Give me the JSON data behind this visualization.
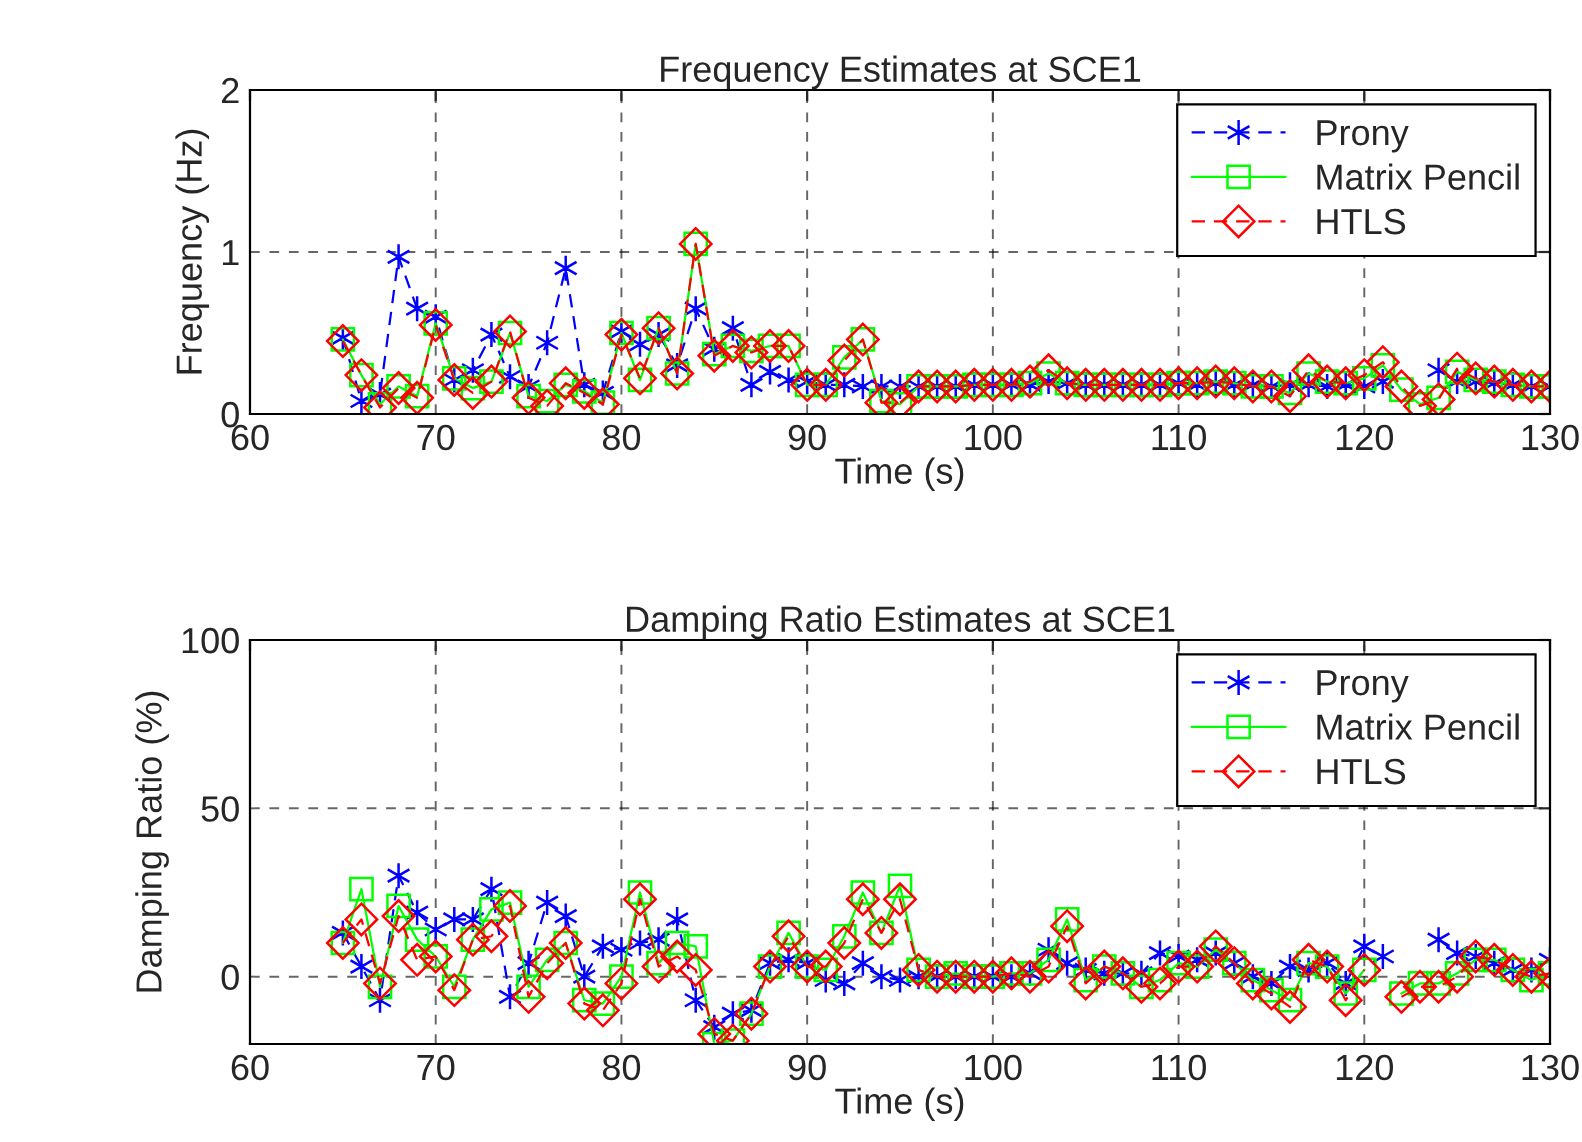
{
  "chart_data": [
    {
      "type": "line",
      "title": "Frequency Estimates at SCE1",
      "xlabel": "Time (s)",
      "ylabel": "Frequency (Hz)",
      "xlim": [
        60,
        130
      ],
      "xticks": [
        60,
        70,
        80,
        90,
        100,
        110,
        120,
        130
      ],
      "ylim": [
        0,
        2
      ],
      "yticks": [
        0,
        1,
        2
      ],
      "grid": true,
      "legend": "top right",
      "x": [
        65,
        66,
        67,
        68,
        69,
        70,
        71,
        72,
        73,
        74,
        75,
        76,
        77,
        78,
        79,
        80,
        81,
        82,
        83,
        84,
        85,
        86,
        87,
        88,
        89,
        90,
        91,
        92,
        93,
        94,
        95,
        96,
        97,
        98,
        99,
        100,
        101,
        102,
        103,
        104,
        105,
        106,
        107,
        108,
        109,
        110,
        111,
        112,
        113,
        114,
        115,
        116,
        117,
        118,
        119,
        120,
        121,
        122,
        123,
        124,
        125,
        126,
        127,
        128,
        129,
        130
      ],
      "series": [
        {
          "name": "Prony",
          "color": "#0000ff",
          "marker": "cross",
          "line_style": "dashed",
          "values": [
            0.47,
            0.08,
            0.12,
            0.97,
            0.65,
            0.6,
            0.21,
            0.27,
            0.49,
            0.23,
            0.17,
            0.44,
            0.9,
            0.18,
            0.13,
            0.51,
            0.43,
            0.49,
            0.3,
            0.65,
            0.4,
            0.53,
            0.18,
            0.26,
            0.21,
            0.2,
            0.18,
            0.18,
            0.17,
            0.17,
            0.17,
            0.17,
            0.17,
            0.17,
            0.18,
            0.18,
            0.18,
            0.18,
            0.2,
            0.19,
            0.18,
            0.18,
            0.18,
            0.18,
            0.18,
            0.19,
            0.18,
            0.19,
            0.18,
            0.18,
            0.17,
            0.18,
            0.18,
            0.17,
            0.18,
            0.17,
            0.2,
            null,
            null,
            0.27,
            0.2,
            0.2,
            0.19,
            0.18,
            0.17,
            0.17
          ]
        },
        {
          "name": "Matrix Pencil",
          "color": "#00ff00",
          "marker": "square",
          "line_style": "solid",
          "values": [
            0.46,
            0.24,
            0.06,
            0.17,
            0.11,
            0.56,
            0.22,
            0.16,
            0.2,
            0.5,
            0.11,
            0.08,
            0.18,
            0.14,
            0.07,
            0.5,
            0.21,
            0.53,
            0.25,
            1.05,
            0.37,
            0.42,
            0.39,
            0.42,
            0.42,
            0.18,
            0.18,
            0.35,
            0.46,
            0.08,
            0.06,
            0.17,
            0.17,
            0.17,
            0.18,
            0.18,
            0.18,
            0.19,
            0.25,
            0.19,
            0.18,
            0.18,
            0.18,
            0.18,
            0.18,
            0.19,
            0.19,
            0.2,
            0.19,
            0.17,
            0.17,
            0.13,
            0.25,
            0.2,
            0.19,
            0.22,
            0.3,
            0.15,
            0.06,
            0.1,
            0.26,
            0.21,
            0.2,
            0.18,
            0.17,
            0.17
          ]
        },
        {
          "name": "HTLS",
          "color": "#ff0000",
          "marker": "diamond",
          "line_style": "dashed",
          "values": [
            0.45,
            0.24,
            0.04,
            0.16,
            0.1,
            0.55,
            0.21,
            0.13,
            0.2,
            0.51,
            0.1,
            0.05,
            0.19,
            0.13,
            0.06,
            0.49,
            0.22,
            0.53,
            0.25,
            1.05,
            0.36,
            0.42,
            0.38,
            0.42,
            0.42,
            0.18,
            0.18,
            0.33,
            0.46,
            0.07,
            0.07,
            0.17,
            0.17,
            0.17,
            0.18,
            0.18,
            0.18,
            0.2,
            0.27,
            0.19,
            0.18,
            0.18,
            0.18,
            0.18,
            0.18,
            0.19,
            0.19,
            0.2,
            0.19,
            0.17,
            0.17,
            0.11,
            0.27,
            0.2,
            0.19,
            0.24,
            0.32,
            0.17,
            0.05,
            0.09,
            0.28,
            0.22,
            0.2,
            0.18,
            0.17,
            0.17
          ]
        }
      ]
    },
    {
      "type": "line",
      "title": "Damping Ratio Estimates at SCE1",
      "xlabel": "Time (s)",
      "ylabel": "Damping Ratio (%)",
      "xlim": [
        60,
        130
      ],
      "xticks": [
        60,
        70,
        80,
        90,
        100,
        110,
        120,
        130
      ],
      "ylim": [
        -20,
        100
      ],
      "yticks": [
        0,
        50,
        100
      ],
      "grid": true,
      "legend": "top right",
      "x": [
        65,
        66,
        67,
        68,
        69,
        70,
        71,
        72,
        73,
        74,
        75,
        76,
        77,
        78,
        79,
        80,
        81,
        82,
        83,
        84,
        85,
        86,
        87,
        88,
        89,
        90,
        91,
        92,
        93,
        94,
        95,
        96,
        97,
        98,
        99,
        100,
        101,
        102,
        103,
        104,
        105,
        106,
        107,
        108,
        109,
        110,
        111,
        112,
        113,
        114,
        115,
        116,
        117,
        118,
        119,
        120,
        121,
        122,
        123,
        124,
        125,
        126,
        127,
        128,
        129,
        130
      ],
      "series": [
        {
          "name": "Prony",
          "color": "#0000ff",
          "marker": "cross",
          "line_style": "dashed",
          "values": [
            13,
            3,
            -7,
            30,
            19,
            14,
            17,
            17,
            26,
            -6,
            4,
            22,
            18,
            0,
            9,
            8,
            10,
            11,
            17,
            -7,
            -15,
            -11,
            -10,
            4,
            5,
            4,
            -1,
            -2,
            4,
            0,
            -1,
            0,
            0,
            0,
            0,
            0,
            0,
            1,
            8,
            4,
            2,
            1,
            1,
            1,
            7,
            6,
            5,
            7,
            4,
            0,
            -2,
            3,
            2,
            4,
            -2,
            9,
            6,
            null,
            null,
            11,
            7,
            6,
            4,
            2,
            2,
            5
          ]
        },
        {
          "name": "Matrix Pencil",
          "color": "#00ff00",
          "marker": "square",
          "line_style": "solid",
          "values": [
            10,
            26,
            -3,
            21,
            11,
            6,
            -3,
            11,
            20,
            22,
            -3,
            5,
            10,
            -7,
            -8,
            0,
            25,
            4,
            10,
            9,
            -20,
            -19,
            -11,
            3,
            13,
            3,
            2,
            12,
            25,
            13,
            27,
            2,
            0,
            1,
            0,
            0,
            1,
            1,
            5,
            17,
            -1,
            3,
            1,
            -3,
            -1,
            4,
            3,
            8,
            4,
            -1,
            -4,
            -7,
            4,
            3,
            -5,
            2,
            null,
            -5,
            -2,
            -2,
            1,
            5,
            5,
            2,
            -1,
            1
          ]
        },
        {
          "name": "HTLS",
          "color": "#ff0000",
          "marker": "diamond",
          "line_style": "dashed",
          "values": [
            10,
            17,
            -2,
            18,
            5,
            6,
            -4,
            11,
            12,
            21,
            -6,
            4,
            10,
            -8,
            -10,
            -2,
            23,
            3,
            6,
            2,
            -17,
            -19,
            -11,
            3,
            12,
            3,
            3,
            10,
            23,
            13,
            23,
            2,
            0,
            0,
            0,
            0,
            1,
            0,
            3,
            15,
            -2,
            3,
            1,
            -3,
            -2,
            3,
            3,
            9,
            4,
            -2,
            -5,
            -9,
            5,
            3,
            -7,
            2,
            null,
            -6,
            -3,
            -3,
            0,
            6,
            5,
            2,
            0,
            1
          ]
        }
      ]
    }
  ]
}
